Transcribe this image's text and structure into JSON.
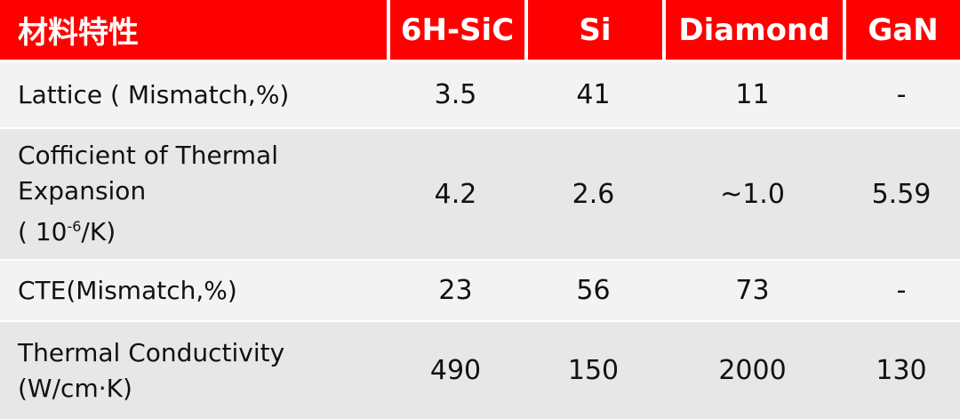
{
  "table": {
    "header": [
      "材料特性",
      "6H-SiC",
      "Si",
      "Diamond",
      "GaN"
    ],
    "rows": [
      {
        "label": [
          "Lattice ( Mismatch,%)"
        ],
        "values": [
          "3.5",
          "41",
          "11",
          "-"
        ]
      },
      {
        "label": [
          "Cofficient of Thermal",
          "Expansion",
          {
            "text": "( 10",
            "sup": "-6",
            "after": "/K)"
          }
        ],
        "values": [
          "4.2",
          "2.6",
          "~1.0",
          "5.59"
        ]
      },
      {
        "label": [
          "CTE(Mismatch,%)"
        ],
        "values": [
          "23",
          "56",
          "73",
          "-"
        ]
      },
      {
        "label": [
          "Thermal Conductivity",
          "(W/cm·K)"
        ],
        "values": [
          "490",
          "150",
          "2000",
          "130"
        ]
      }
    ]
  }
}
